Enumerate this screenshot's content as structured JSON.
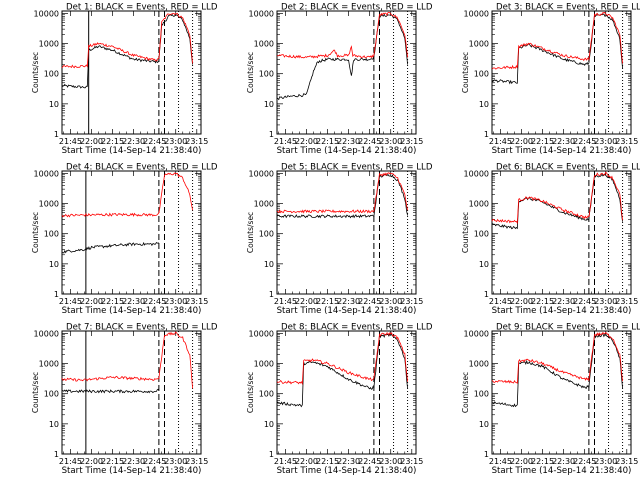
{
  "figure": {
    "x_label": "Start Time (14-Sep-14 21:38:40)",
    "y_label": "Counts/sec"
  },
  "chart_data": [
    {
      "type": "line",
      "title": "Det 1: BLACK = Events, RED = LLD",
      "xlabel": "Start Time (14-Sep-14 21:38:40)",
      "ylabel": "Counts/sec",
      "log_y": true,
      "xlim": [
        "21:39",
        "23:18"
      ],
      "ylim": [
        1,
        12000
      ],
      "x_ticks": [
        "21:45",
        "22:00",
        "22:15",
        "22:30",
        "22:45",
        "23:00",
        "23:15"
      ],
      "y_ticks": [
        "1",
        "10",
        "100",
        "1000",
        "10000"
      ],
      "markers": {
        "F": "21:58",
        "S": "22:48",
        "E": "22:52"
      },
      "series": [
        {
          "color": "#000000",
          "x": [
            "21:39",
            "21:57",
            "21:58",
            "22:05",
            "22:15",
            "22:30",
            "22:45",
            "22:48",
            "22:50",
            "22:55",
            "23:00",
            "23:05",
            "23:10",
            "23:12"
          ],
          "y": [
            40,
            35,
            600,
            800,
            600,
            300,
            250,
            260,
            4000,
            8000,
            9000,
            6000,
            1500,
            200
          ]
        },
        {
          "color": "#ff0000",
          "x": [
            "21:39",
            "21:57",
            "21:58",
            "22:05",
            "22:15",
            "22:30",
            "22:45",
            "22:48",
            "22:50",
            "22:55",
            "23:00",
            "23:05",
            "23:10",
            "23:12"
          ],
          "y": [
            170,
            180,
            800,
            1000,
            800,
            400,
            280,
            300,
            5000,
            10000,
            10000,
            7000,
            2000,
            220
          ]
        }
      ]
    },
    {
      "type": "line",
      "title": "Det 2: BLACK = Events, RED = LLD",
      "xlabel": "Start Time (14-Sep-14 21:38:40)",
      "ylabel": "Counts/sec",
      "log_y": true,
      "xlim": [
        "21:39",
        "23:18"
      ],
      "ylim": [
        1,
        12000
      ],
      "x_ticks": [
        "21:45",
        "22:00",
        "22:15",
        "22:30",
        "22:45",
        "23:00",
        "23:15"
      ],
      "y_ticks": [
        "1",
        "10",
        "100",
        "1000",
        "10000"
      ],
      "markers": {
        "S": "22:48",
        "E": "22:52"
      },
      "series": [
        {
          "color": "#000000",
          "x": [
            "21:39",
            "21:50",
            "22:00",
            "22:05",
            "22:08",
            "22:15",
            "22:30",
            "22:32",
            "22:33",
            "22:34",
            "22:40",
            "22:45",
            "22:48",
            "22:52",
            "23:00",
            "23:05",
            "23:10",
            "23:12"
          ],
          "y": [
            15,
            18,
            20,
            120,
            250,
            300,
            300,
            80,
            200,
            300,
            300,
            300,
            350,
            8000,
            9000,
            6000,
            1500,
            200
          ]
        },
        {
          "color": "#ff0000",
          "x": [
            "21:39",
            "22:00",
            "22:15",
            "22:20",
            "22:22",
            "22:30",
            "22:32",
            "22:33",
            "22:45",
            "22:48",
            "22:52",
            "23:00",
            "23:05",
            "23:10",
            "23:12"
          ],
          "y": [
            400,
            350,
            400,
            600,
            400,
            400,
            800,
            400,
            350,
            400,
            9000,
            10000,
            7000,
            2000,
            350
          ]
        }
      ]
    },
    {
      "type": "line",
      "title": "Det 3: BLACK = Events, RED = LLD",
      "xlabel": "Start Time (14-Sep-14 21:38:40)",
      "ylabel": "Counts/sec",
      "log_y": true,
      "xlim": [
        "21:39",
        "23:18"
      ],
      "ylim": [
        1,
        12000
      ],
      "x_ticks": [
        "21:45",
        "22:00",
        "22:15",
        "22:30",
        "22:45",
        "23:00",
        "23:15"
      ],
      "y_ticks": [
        "1",
        "10",
        "100",
        "1000",
        "10000"
      ],
      "markers": {
        "S": "22:48",
        "E": "22:52"
      },
      "series": [
        {
          "color": "#000000",
          "x": [
            "21:39",
            "21:57",
            "21:58",
            "22:05",
            "22:15",
            "22:30",
            "22:45",
            "22:48",
            "22:52",
            "23:00",
            "23:05",
            "23:10",
            "23:12"
          ],
          "y": [
            60,
            50,
            700,
            900,
            600,
            300,
            200,
            220,
            8000,
            9000,
            6000,
            1500,
            150
          ]
        },
        {
          "color": "#ff0000",
          "x": [
            "21:39",
            "21:57",
            "21:58",
            "22:05",
            "22:15",
            "22:30",
            "22:45",
            "22:48",
            "22:52",
            "23:00",
            "23:05",
            "23:10",
            "23:12"
          ],
          "y": [
            150,
            170,
            800,
            1000,
            700,
            400,
            300,
            300,
            9000,
            10000,
            7000,
            2000,
            220
          ]
        }
      ]
    },
    {
      "type": "line",
      "title": "Det 4: BLACK = Events, RED = LLD",
      "xlabel": "Start Time (14-Sep-14 21:38:40)",
      "ylabel": "Counts/sec",
      "log_y": true,
      "xlim": [
        "21:39",
        "23:18"
      ],
      "ylim": [
        1,
        12000
      ],
      "x_ticks": [
        "21:45",
        "22:00",
        "22:15",
        "22:30",
        "22:45",
        "23:00",
        "23:15"
      ],
      "y_ticks": [
        "1",
        "10",
        "100",
        "1000",
        "10000"
      ],
      "markers": {
        "E": "21:40",
        "F": "21:56",
        "S": "22:48",
        "E2": "22:53"
      },
      "series": [
        {
          "color": "#000000",
          "x": [
            "21:39",
            "21:55",
            "22:00",
            "22:15",
            "22:30",
            "22:45",
            "22:48"
          ],
          "y": [
            25,
            30,
            35,
            40,
            45,
            45,
            50
          ]
        },
        {
          "color": "#ff0000",
          "x": [
            "21:39",
            "22:00",
            "22:15",
            "22:30",
            "22:45",
            "22:48",
            "22:52",
            "23:00",
            "23:05",
            "23:10",
            "23:12"
          ],
          "y": [
            400,
            420,
            430,
            430,
            420,
            450,
            9000,
            10000,
            7000,
            2000,
            600
          ]
        }
      ]
    },
    {
      "type": "line",
      "title": "Det 5: BLACK = Events, RED = LLD",
      "xlabel": "Start Time (14-Sep-14 21:38:40)",
      "ylabel": "Counts/sec",
      "log_y": true,
      "xlim": [
        "21:39",
        "23:18"
      ],
      "ylim": [
        1,
        12000
      ],
      "x_ticks": [
        "21:45",
        "22:00",
        "22:15",
        "22:30",
        "22:45",
        "23:00",
        "23:15"
      ],
      "y_ticks": [
        "1",
        "10",
        "100",
        "1000",
        "10000"
      ],
      "markers": {
        "S": "22:48",
        "E": "22:52"
      },
      "series": [
        {
          "color": "#000000",
          "x": [
            "21:39",
            "22:00",
            "22:15",
            "22:30",
            "22:45",
            "22:48",
            "22:52",
            "23:00",
            "23:05",
            "23:10",
            "23:12"
          ],
          "y": [
            380,
            380,
            380,
            380,
            380,
            400,
            8000,
            9000,
            6000,
            1500,
            400
          ]
        },
        {
          "color": "#ff0000",
          "x": [
            "21:39",
            "22:00",
            "22:15",
            "22:30",
            "22:45",
            "22:48",
            "22:52",
            "23:00",
            "23:05",
            "23:10",
            "23:12"
          ],
          "y": [
            550,
            550,
            550,
            550,
            550,
            560,
            9000,
            10000,
            7000,
            2000,
            600
          ]
        }
      ]
    },
    {
      "type": "line",
      "title": "Det 6: BLACK = Events, RED = LLD",
      "xlabel": "Start Time (14-Sep-14 21:38:40)",
      "ylabel": "Counts/sec",
      "log_y": true,
      "xlim": [
        "21:39",
        "23:18"
      ],
      "ylim": [
        1,
        12000
      ],
      "x_ticks": [
        "21:45",
        "22:00",
        "22:15",
        "22:30",
        "22:45",
        "23:00",
        "23:15"
      ],
      "y_ticks": [
        "1",
        "10",
        "100",
        "1000",
        "10000"
      ],
      "markers": {
        "S": "22:48",
        "E": "22:52"
      },
      "series": [
        {
          "color": "#000000",
          "x": [
            "21:39",
            "21:57",
            "21:58",
            "22:05",
            "22:15",
            "22:30",
            "22:45",
            "22:48",
            "22:52",
            "23:00",
            "23:05",
            "23:10",
            "23:12"
          ],
          "y": [
            200,
            150,
            1200,
            1500,
            1100,
            500,
            300,
            300,
            8000,
            9000,
            6000,
            1500,
            250
          ]
        },
        {
          "color": "#ff0000",
          "x": [
            "21:39",
            "21:57",
            "21:58",
            "22:05",
            "22:15",
            "22:30",
            "22:45",
            "22:48",
            "22:52",
            "23:00",
            "23:05",
            "23:10",
            "23:12"
          ],
          "y": [
            280,
            250,
            1300,
            1600,
            1200,
            600,
            350,
            350,
            9000,
            10000,
            7000,
            2000,
            280
          ]
        }
      ]
    },
    {
      "type": "line",
      "title": "Det 7: BLACK = Events, RED = LLD",
      "xlabel": "Start Time (14-Sep-14 21:38:40)",
      "ylabel": "Counts/sec",
      "log_y": true,
      "xlim": [
        "21:39",
        "23:18"
      ],
      "ylim": [
        1,
        12000
      ],
      "x_ticks": [
        "21:45",
        "22:00",
        "22:15",
        "22:30",
        "22:45",
        "23:00",
        "23:15"
      ],
      "y_ticks": [
        "1",
        "10",
        "100",
        "1000",
        "10000"
      ],
      "markers": {
        "E": "21:40",
        "F": "21:56",
        "S": "22:48",
        "E2": "22:53"
      },
      "series": [
        {
          "color": "#000000",
          "x": [
            "21:39",
            "22:00",
            "22:15",
            "22:30",
            "22:45",
            "22:48"
          ],
          "y": [
            120,
            120,
            120,
            120,
            120,
            130
          ]
        },
        {
          "color": "#ff0000",
          "x": [
            "21:39",
            "21:55",
            "22:00",
            "22:15",
            "22:30",
            "22:45",
            "22:48",
            "22:52",
            "23:00",
            "23:05",
            "23:10",
            "23:12"
          ],
          "y": [
            300,
            280,
            300,
            350,
            320,
            300,
            320,
            9000,
            10000,
            7000,
            2000,
            150
          ]
        }
      ]
    },
    {
      "type": "line",
      "title": "Det 8: BLACK = Events, RED = LLD",
      "xlabel": "Start Time (14-Sep-14 21:38:40)",
      "ylabel": "Counts/sec",
      "log_y": true,
      "xlim": [
        "21:39",
        "23:18"
      ],
      "ylim": [
        1,
        12000
      ],
      "x_ticks": [
        "21:45",
        "22:00",
        "22:15",
        "22:30",
        "22:45",
        "23:00",
        "23:15"
      ],
      "y_ticks": [
        "1",
        "10",
        "100",
        "1000",
        "10000"
      ],
      "markers": {
        "S": "22:48",
        "E": "22:52"
      },
      "series": [
        {
          "color": "#000000",
          "x": [
            "21:39",
            "21:57",
            "21:58",
            "22:05",
            "22:15",
            "22:30",
            "22:45",
            "22:48",
            "22:52",
            "23:00",
            "23:05",
            "23:10",
            "23:12"
          ],
          "y": [
            50,
            40,
            1000,
            1100,
            800,
            300,
            150,
            160,
            8000,
            9000,
            6000,
            1500,
            150
          ]
        },
        {
          "color": "#ff0000",
          "x": [
            "21:39",
            "21:57",
            "21:58",
            "22:05",
            "22:15",
            "22:30",
            "22:45",
            "22:48",
            "22:52",
            "23:00",
            "23:05",
            "23:10",
            "23:12"
          ],
          "y": [
            250,
            230,
            1200,
            1300,
            1000,
            500,
            300,
            300,
            9000,
            10000,
            7000,
            2000,
            250
          ]
        }
      ]
    },
    {
      "type": "line",
      "title": "Det 9: BLACK = Events, RED = LLD",
      "xlabel": "Start Time (14-Sep-14 21:38:40)",
      "ylabel": "Counts/sec",
      "log_y": true,
      "xlim": [
        "21:39",
        "23:18"
      ],
      "ylim": [
        1,
        12000
      ],
      "x_ticks": [
        "21:45",
        "22:00",
        "22:15",
        "22:30",
        "22:45",
        "23:00",
        "23:15"
      ],
      "y_ticks": [
        "1",
        "10",
        "100",
        "1000",
        "10000"
      ],
      "markers": {
        "S": "22:48",
        "E": "22:52"
      },
      "series": [
        {
          "color": "#000000",
          "x": [
            "21:39",
            "21:57",
            "21:58",
            "22:05",
            "22:15",
            "22:30",
            "22:45",
            "22:48",
            "22:52",
            "23:00",
            "23:05",
            "23:10",
            "23:12"
          ],
          "y": [
            50,
            40,
            1000,
            1100,
            800,
            300,
            160,
            170,
            8000,
            9000,
            6000,
            1500,
            150
          ]
        },
        {
          "color": "#ff0000",
          "x": [
            "21:39",
            "21:57",
            "21:58",
            "22:05",
            "22:15",
            "22:30",
            "22:45",
            "22:48",
            "22:52",
            "23:00",
            "23:05",
            "23:10",
            "23:12"
          ],
          "y": [
            260,
            240,
            1200,
            1300,
            1000,
            500,
            300,
            300,
            9000,
            10000,
            7000,
            2000,
            260
          ]
        }
      ]
    }
  ]
}
